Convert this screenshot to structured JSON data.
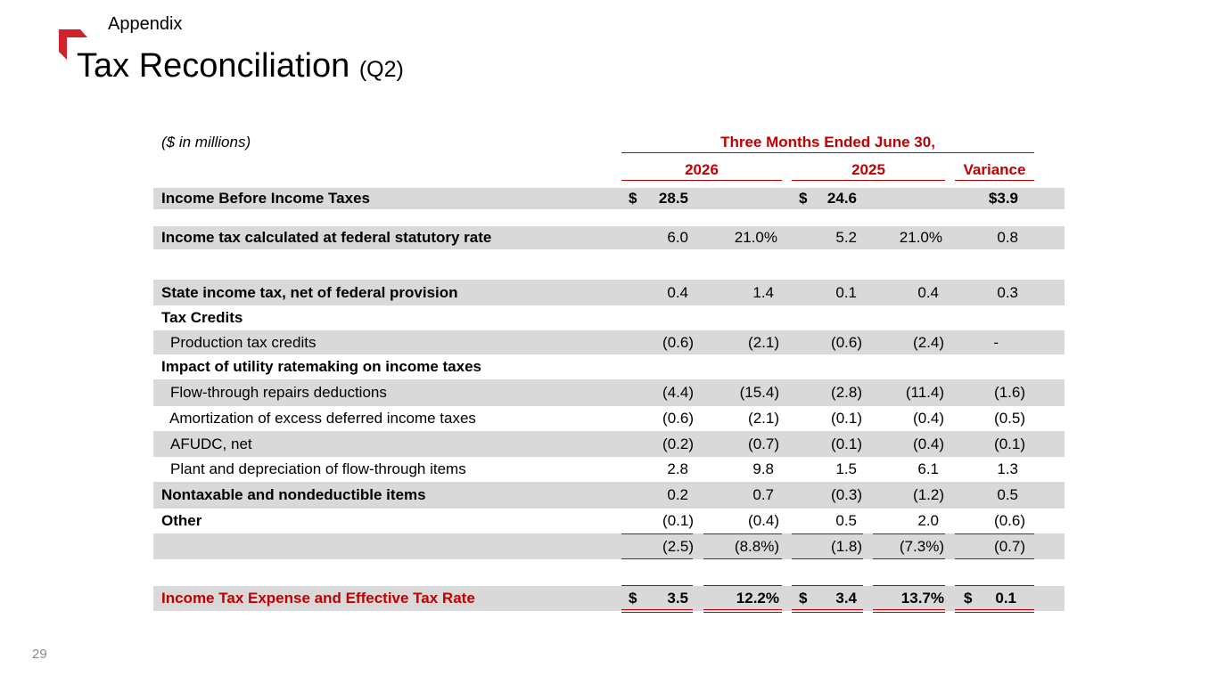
{
  "header": {
    "section": "Appendix",
    "title": "Tax Reconciliation",
    "subtitle": "(Q2)"
  },
  "page_number": "29",
  "brand_color": "#c00000",
  "table": {
    "units_note": "($ in millions)",
    "period_header": "Three Months Ended June 30,",
    "col_headers": [
      "2026",
      "2025",
      "Variance"
    ],
    "rows": {
      "income_before": {
        "label": "Income Before Income Taxes",
        "a_prefix": "$",
        "a": "28.5",
        "c_prefix": "$",
        "c": "24.6",
        "e": "$3.9"
      },
      "federal": {
        "label": "Income tax calculated at federal statutory rate",
        "a": "6.0",
        "b": "21.0%",
        "c": "5.2",
        "d": "21.0%",
        "e": "0.8"
      },
      "state": {
        "label": "State income tax, net of federal provision",
        "a": "0.4",
        "b": "1.4",
        "c": "0.1",
        "d": "0.4",
        "e": "0.3"
      },
      "tax_credits": {
        "label": "Tax Credits"
      },
      "production": {
        "label": "Production tax credits",
        "a": "(0.6)",
        "b": "(2.1)",
        "c": "(0.6)",
        "d": "(2.4)",
        "e": "-"
      },
      "utility": {
        "label": "Impact of utility ratemaking on income taxes"
      },
      "flow_through": {
        "label": "Flow-through repairs deductions",
        "a": "(4.4)",
        "b": "(15.4)",
        "c": "(2.8)",
        "d": "(11.4)",
        "e": "(1.6)"
      },
      "amortization": {
        "label": "Amortization of excess deferred income taxes",
        "a": "(0.6)",
        "b": "(2.1)",
        "c": "(0.1)",
        "d": "(0.4)",
        "e": "(0.5)"
      },
      "afudc": {
        "label": "AFUDC, net",
        "a": "(0.2)",
        "b": "(0.7)",
        "c": "(0.1)",
        "d": "(0.4)",
        "e": "(0.1)"
      },
      "plant": {
        "label": "Plant and depreciation of flow-through items",
        "a": "2.8",
        "b": "9.8",
        "c": "1.5",
        "d": "6.1",
        "e": "1.3"
      },
      "nontaxable": {
        "label": "Nontaxable and nondeductible items",
        "a": "0.2",
        "b": "0.7",
        "c": "(0.3)",
        "d": "(1.2)",
        "e": "0.5"
      },
      "other": {
        "label": "Other",
        "a": "(0.1)",
        "b": "(0.4)",
        "c": "0.5",
        "d": "2.0",
        "e": "(0.6)"
      },
      "subtotal": {
        "a": "(2.5)",
        "b": "(8.8%)",
        "c": "(1.8)",
        "d": "(7.3%)",
        "e": "(0.7)"
      },
      "total": {
        "label": "Income Tax Expense and Effective Tax Rate",
        "a_prefix": "$",
        "a": "3.5",
        "b": "12.2%",
        "c_prefix": "$",
        "c": "3.4",
        "d": "13.7%",
        "e_prefix": "$",
        "e": "0.1"
      }
    }
  }
}
